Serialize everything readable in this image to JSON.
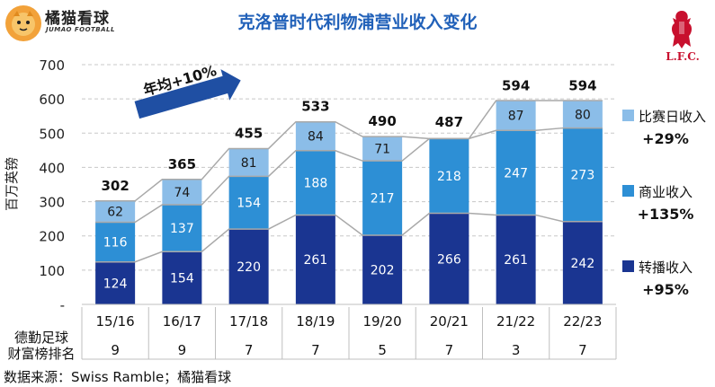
{
  "header": {
    "brand_name": "橘猫看球",
    "brand_sub": "JUMAO FOOTBALL",
    "title": "克洛普时代利物浦营业收入变化",
    "crest_text": "L.F.C."
  },
  "source": "数据来源：Swiss Ramble；橘猫看球",
  "growth_arrow_label": "年均+10%",
  "table": {
    "row_label_1": "德勤足球",
    "row_label_2": "财富榜排名",
    "ranks": [
      "9",
      "9",
      "7",
      "7",
      "5",
      "7",
      "3",
      "7"
    ]
  },
  "legend": [
    {
      "name": "比赛日收入",
      "change": "+29%",
      "color": "#8bbde8"
    },
    {
      "name": "商业收入",
      "change": "+135%",
      "color": "#2d8fd5"
    },
    {
      "name": "转播收入",
      "change": "+95%",
      "color": "#1a3591"
    }
  ],
  "chart_data": {
    "type": "bar",
    "stacked": true,
    "categories": [
      "15/16",
      "16/17",
      "17/18",
      "18/19",
      "19/20",
      "20/21",
      "21/22",
      "22/23"
    ],
    "series": [
      {
        "name": "转播收入",
        "values": [
          124,
          154,
          220,
          261,
          202,
          266,
          261,
          242
        ],
        "color": "#1a3591",
        "label_color": "#ffffff"
      },
      {
        "name": "商业收入",
        "values": [
          116,
          137,
          154,
          188,
          217,
          218,
          247,
          273
        ],
        "color": "#2d8fd5",
        "label_color": "#ffffff"
      },
      {
        "name": "比赛日收入",
        "values": [
          62,
          74,
          81,
          84,
          71,
          null,
          87,
          80
        ],
        "color": "#8bbde8",
        "label_color": "#1a1a1a"
      }
    ],
    "totals": [
      302,
      365,
      455,
      533,
      490,
      487,
      594,
      594
    ],
    "ylabel": "百万英镑",
    "yticks": [
      "-",
      "100",
      "200",
      "300",
      "400",
      "500",
      "600",
      "700"
    ],
    "ylim": [
      0,
      700
    ],
    "grid": true
  }
}
